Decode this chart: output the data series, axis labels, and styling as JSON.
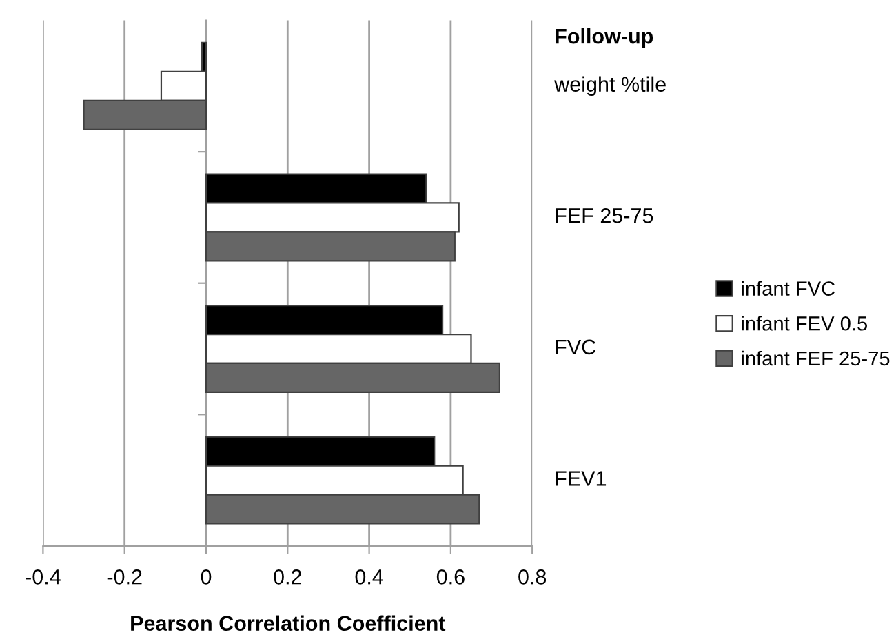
{
  "chart_data": {
    "type": "bar",
    "orientation": "horizontal",
    "categories": [
      "weight %tile",
      "FEF 25-75",
      "FVC",
      "FEV1"
    ],
    "series": [
      {
        "name": "infant FVC",
        "color": "#000000",
        "values": [
          -0.01,
          0.54,
          0.58,
          0.56
        ]
      },
      {
        "name": "infant FEV 0.5",
        "color": "#ffffff",
        "values": [
          -0.11,
          0.62,
          0.65,
          0.63
        ]
      },
      {
        "name": "infant FEF 25-75",
        "color": "#666666",
        "values": [
          -0.3,
          0.61,
          0.72,
          0.67
        ]
      }
    ],
    "xlabel": "Pearson Correlation Coefficient",
    "ylabel": "Follow-up",
    "xlim": [
      -0.4,
      0.8
    ],
    "xticks": [
      -0.4,
      -0.2,
      0,
      0.2,
      0.4,
      0.6,
      0.8
    ],
    "grid": "x",
    "legend": "right"
  }
}
